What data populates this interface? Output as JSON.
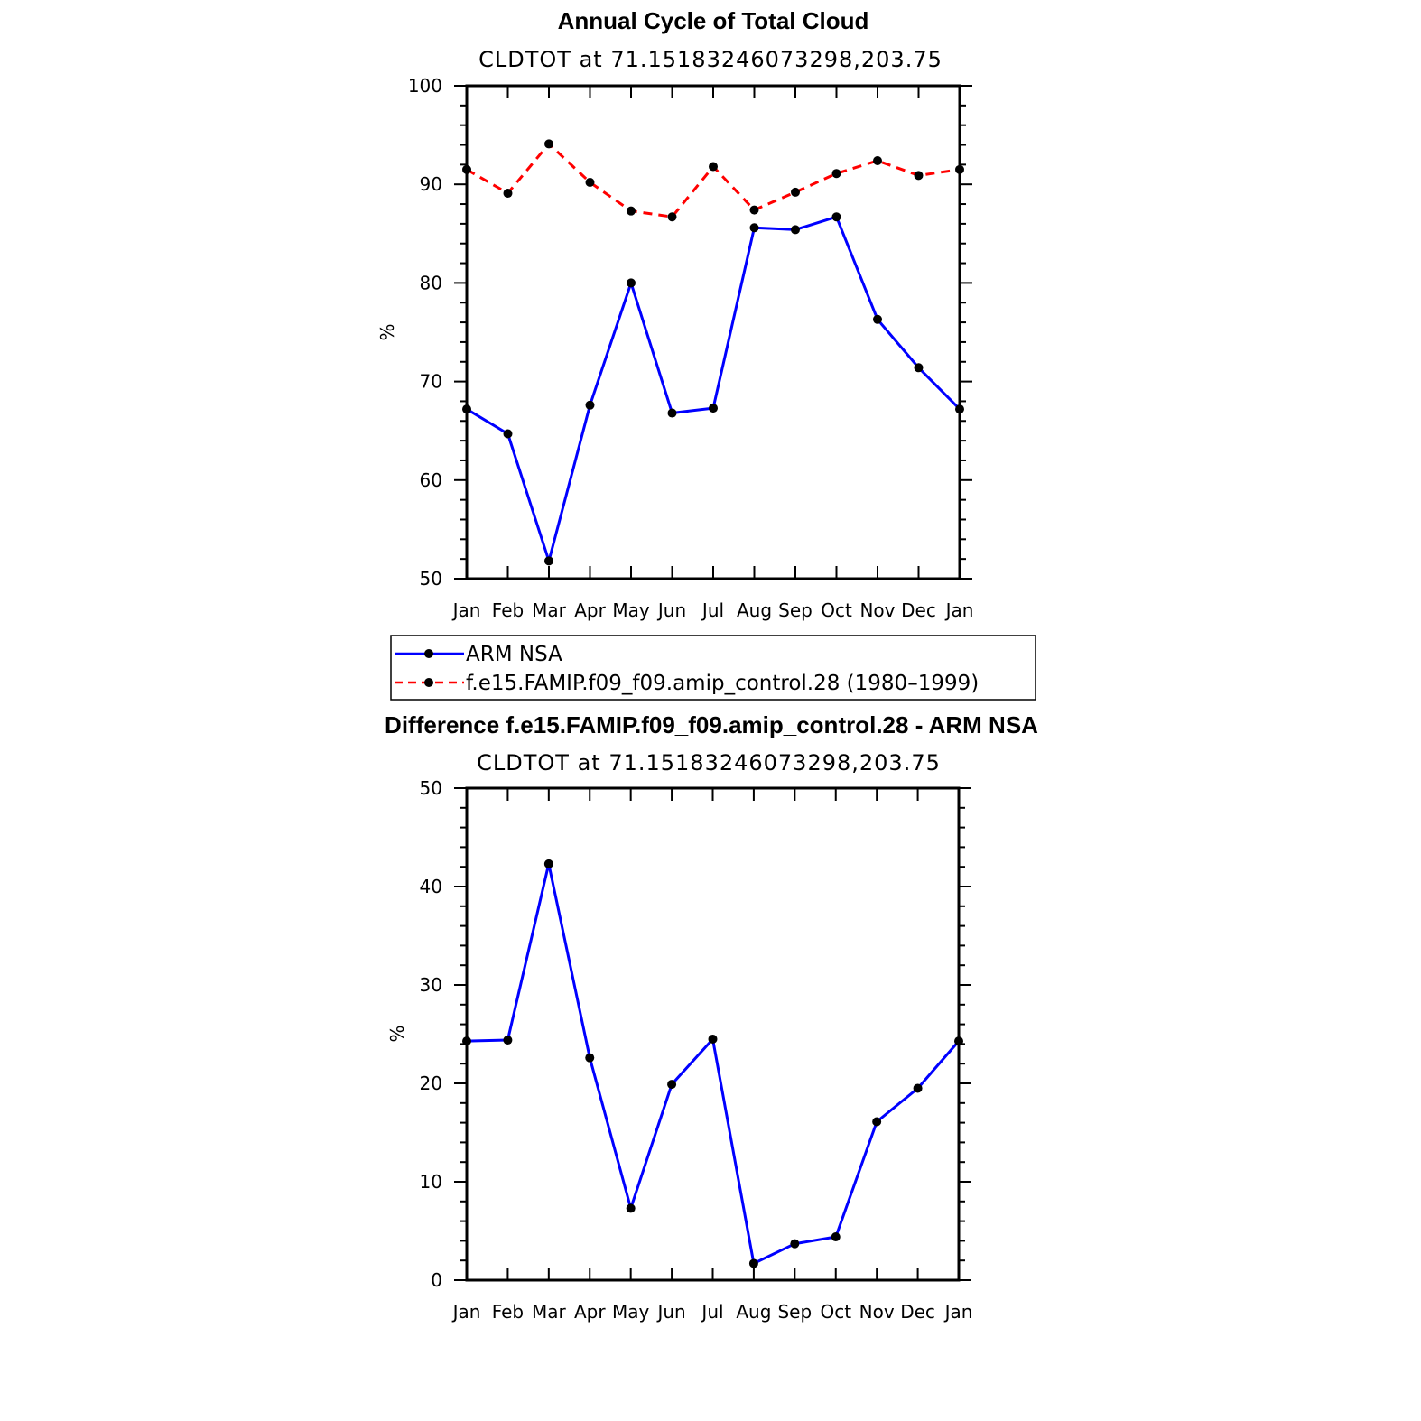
{
  "chart_data": [
    {
      "type": "line",
      "title": "Annual Cycle of Total Cloud",
      "subtitle": "CLDTOT at 71.15183246073298,203.75",
      "xlabel": "",
      "ylabel": "%",
      "categories": [
        "Jan",
        "Feb",
        "Mar",
        "Apr",
        "May",
        "Jun",
        "Jul",
        "Aug",
        "Sep",
        "Oct",
        "Nov",
        "Dec",
        "Jan"
      ],
      "ylim": [
        50,
        100
      ],
      "yticks": [
        "50",
        "60",
        "70",
        "80",
        "90",
        "100"
      ],
      "series": [
        {
          "name": "ARM NSA",
          "color": "#0000ff",
          "dash": "solid",
          "values": [
            67.2,
            64.7,
            51.8,
            67.6,
            80.0,
            66.8,
            67.3,
            85.6,
            85.4,
            86.7,
            76.3,
            71.4,
            67.2
          ]
        },
        {
          "name": "f.e15.FAMIP.f09_f09.amip_control.28 (1980–1999)",
          "color": "#ff0000",
          "dash": "dashed",
          "values": [
            91.5,
            89.1,
            94.1,
            90.2,
            87.3,
            86.7,
            91.8,
            87.4,
            89.2,
            91.1,
            92.4,
            90.9,
            91.5
          ]
        }
      ]
    },
    {
      "type": "line",
      "title": "Difference f.e15.FAMIP.f09_f09.amip_control.28 - ARM NSA",
      "subtitle": "CLDTOT at 71.15183246073298,203.75",
      "xlabel": "",
      "ylabel": "%",
      "categories": [
        "Jan",
        "Feb",
        "Mar",
        "Apr",
        "May",
        "Jun",
        "Jul",
        "Aug",
        "Sep",
        "Oct",
        "Nov",
        "Dec",
        "Jan"
      ],
      "ylim": [
        0,
        50
      ],
      "yticks": [
        "0",
        "10",
        "20",
        "30",
        "40",
        "50"
      ],
      "series": [
        {
          "name": "Difference",
          "color": "#0000ff",
          "dash": "solid",
          "values": [
            24.3,
            24.4,
            42.3,
            22.6,
            7.3,
            19.9,
            24.5,
            1.7,
            3.7,
            4.4,
            16.1,
            19.5,
            24.3
          ]
        }
      ]
    }
  ]
}
